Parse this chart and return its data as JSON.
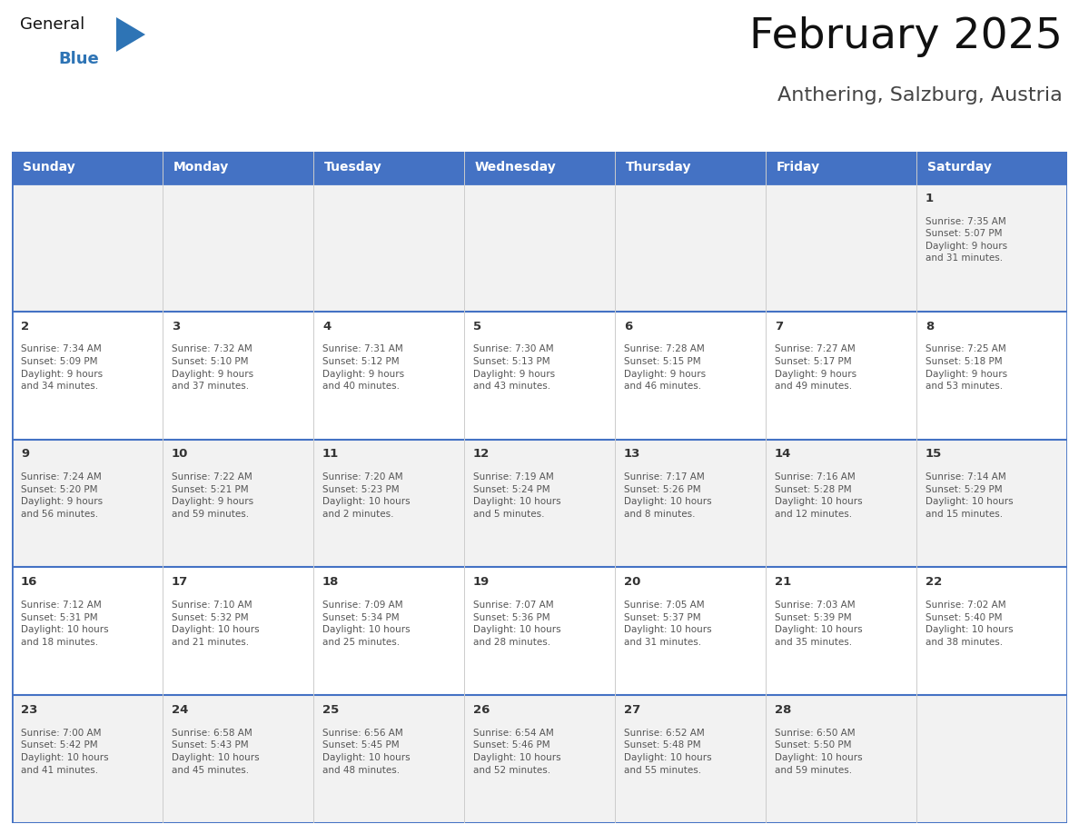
{
  "title": "February 2025",
  "subtitle": "Anthering, Salzburg, Austria",
  "header_color": "#4472C4",
  "header_text_color": "#FFFFFF",
  "days_of_week": [
    "Sunday",
    "Monday",
    "Tuesday",
    "Wednesday",
    "Thursday",
    "Friday",
    "Saturday"
  ],
  "background_color": "#FFFFFF",
  "cell_bg_light": "#F2F2F2",
  "cell_bg_white": "#FFFFFF",
  "border_color": "#4472C4",
  "cell_border_color": "#AAAAAA",
  "day_number_color": "#333333",
  "text_color": "#555555",
  "logo_general_color": "#111111",
  "logo_blue_color": "#2E74B5",
  "logo_triangle_color": "#2E74B5",
  "week1": [
    {
      "day": "",
      "info": ""
    },
    {
      "day": "",
      "info": ""
    },
    {
      "day": "",
      "info": ""
    },
    {
      "day": "",
      "info": ""
    },
    {
      "day": "",
      "info": ""
    },
    {
      "day": "",
      "info": ""
    },
    {
      "day": "1",
      "info": "Sunrise: 7:35 AM\nSunset: 5:07 PM\nDaylight: 9 hours\nand 31 minutes."
    }
  ],
  "week2": [
    {
      "day": "2",
      "info": "Sunrise: 7:34 AM\nSunset: 5:09 PM\nDaylight: 9 hours\nand 34 minutes."
    },
    {
      "day": "3",
      "info": "Sunrise: 7:32 AM\nSunset: 5:10 PM\nDaylight: 9 hours\nand 37 minutes."
    },
    {
      "day": "4",
      "info": "Sunrise: 7:31 AM\nSunset: 5:12 PM\nDaylight: 9 hours\nand 40 minutes."
    },
    {
      "day": "5",
      "info": "Sunrise: 7:30 AM\nSunset: 5:13 PM\nDaylight: 9 hours\nand 43 minutes."
    },
    {
      "day": "6",
      "info": "Sunrise: 7:28 AM\nSunset: 5:15 PM\nDaylight: 9 hours\nand 46 minutes."
    },
    {
      "day": "7",
      "info": "Sunrise: 7:27 AM\nSunset: 5:17 PM\nDaylight: 9 hours\nand 49 minutes."
    },
    {
      "day": "8",
      "info": "Sunrise: 7:25 AM\nSunset: 5:18 PM\nDaylight: 9 hours\nand 53 minutes."
    }
  ],
  "week3": [
    {
      "day": "9",
      "info": "Sunrise: 7:24 AM\nSunset: 5:20 PM\nDaylight: 9 hours\nand 56 minutes."
    },
    {
      "day": "10",
      "info": "Sunrise: 7:22 AM\nSunset: 5:21 PM\nDaylight: 9 hours\nand 59 minutes."
    },
    {
      "day": "11",
      "info": "Sunrise: 7:20 AM\nSunset: 5:23 PM\nDaylight: 10 hours\nand 2 minutes."
    },
    {
      "day": "12",
      "info": "Sunrise: 7:19 AM\nSunset: 5:24 PM\nDaylight: 10 hours\nand 5 minutes."
    },
    {
      "day": "13",
      "info": "Sunrise: 7:17 AM\nSunset: 5:26 PM\nDaylight: 10 hours\nand 8 minutes."
    },
    {
      "day": "14",
      "info": "Sunrise: 7:16 AM\nSunset: 5:28 PM\nDaylight: 10 hours\nand 12 minutes."
    },
    {
      "day": "15",
      "info": "Sunrise: 7:14 AM\nSunset: 5:29 PM\nDaylight: 10 hours\nand 15 minutes."
    }
  ],
  "week4": [
    {
      "day": "16",
      "info": "Sunrise: 7:12 AM\nSunset: 5:31 PM\nDaylight: 10 hours\nand 18 minutes."
    },
    {
      "day": "17",
      "info": "Sunrise: 7:10 AM\nSunset: 5:32 PM\nDaylight: 10 hours\nand 21 minutes."
    },
    {
      "day": "18",
      "info": "Sunrise: 7:09 AM\nSunset: 5:34 PM\nDaylight: 10 hours\nand 25 minutes."
    },
    {
      "day": "19",
      "info": "Sunrise: 7:07 AM\nSunset: 5:36 PM\nDaylight: 10 hours\nand 28 minutes."
    },
    {
      "day": "20",
      "info": "Sunrise: 7:05 AM\nSunset: 5:37 PM\nDaylight: 10 hours\nand 31 minutes."
    },
    {
      "day": "21",
      "info": "Sunrise: 7:03 AM\nSunset: 5:39 PM\nDaylight: 10 hours\nand 35 minutes."
    },
    {
      "day": "22",
      "info": "Sunrise: 7:02 AM\nSunset: 5:40 PM\nDaylight: 10 hours\nand 38 minutes."
    }
  ],
  "week5": [
    {
      "day": "23",
      "info": "Sunrise: 7:00 AM\nSunset: 5:42 PM\nDaylight: 10 hours\nand 41 minutes."
    },
    {
      "day": "24",
      "info": "Sunrise: 6:58 AM\nSunset: 5:43 PM\nDaylight: 10 hours\nand 45 minutes."
    },
    {
      "day": "25",
      "info": "Sunrise: 6:56 AM\nSunset: 5:45 PM\nDaylight: 10 hours\nand 48 minutes."
    },
    {
      "day": "26",
      "info": "Sunrise: 6:54 AM\nSunset: 5:46 PM\nDaylight: 10 hours\nand 52 minutes."
    },
    {
      "day": "27",
      "info": "Sunrise: 6:52 AM\nSunset: 5:48 PM\nDaylight: 10 hours\nand 55 minutes."
    },
    {
      "day": "28",
      "info": "Sunrise: 6:50 AM\nSunset: 5:50 PM\nDaylight: 10 hours\nand 59 minutes."
    },
    {
      "day": "",
      "info": ""
    }
  ]
}
